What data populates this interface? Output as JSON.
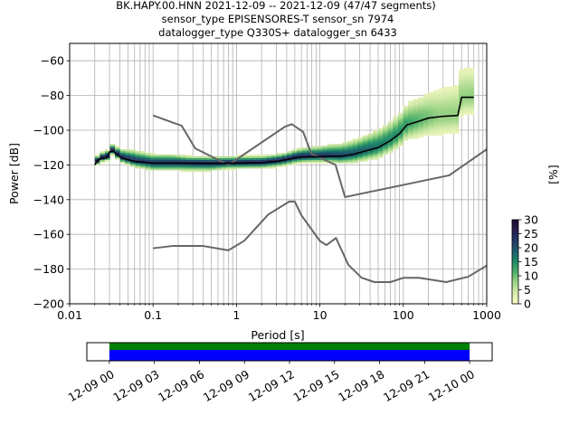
{
  "title_lines": [
    "BK.HAPY.00.HNN   2021-12-09 -- 2021-12-09  (47/47 segments)",
    "sensor_type EPISENSORES-T sensor_sn 7974",
    "datalogger_type Q330S+ datalogger_sn 6433"
  ],
  "chart_data": {
    "type": "heatmap",
    "xlabel": "Period [s]",
    "ylabel": "Power [dB]",
    "xscale": "log",
    "xlim": [
      0.01,
      1000
    ],
    "ylim": [
      -200,
      -50
    ],
    "xticks": [
      {
        "v": 0.01,
        "label": "0.01"
      },
      {
        "v": 0.1,
        "label": "0.1"
      },
      {
        "v": 1,
        "label": "1"
      },
      {
        "v": 10,
        "label": "10"
      },
      {
        "v": 100,
        "label": "100"
      },
      {
        "v": 1000,
        "label": "1000"
      }
    ],
    "yticks": [
      {
        "v": -60,
        "label": "−60"
      },
      {
        "v": -80,
        "label": "−80"
      },
      {
        "v": -100,
        "label": "−100"
      },
      {
        "v": -120,
        "label": "−120"
      },
      {
        "v": -140,
        "label": "−140"
      },
      {
        "v": -160,
        "label": "−160"
      },
      {
        "v": -180,
        "label": "−180"
      },
      {
        "v": -200,
        "label": "−200"
      }
    ],
    "grid": true,
    "noise_model_color": "#666666",
    "mode_line_color": "#000000",
    "new_high_noise_model": [
      [
        0.1,
        -91.5
      ],
      [
        0.22,
        -97.4
      ],
      [
        0.32,
        -110.5
      ],
      [
        0.8,
        -120
      ],
      [
        3.8,
        -98
      ],
      [
        4.6,
        -96.5
      ],
      [
        6.3,
        -101
      ],
      [
        7.9,
        -113.5
      ],
      [
        15.4,
        -120
      ],
      [
        20,
        -138.5
      ],
      [
        354.8,
        -126
      ],
      [
        1000,
        -111
      ]
    ],
    "new_low_noise_model": [
      [
        0.1,
        -168
      ],
      [
        0.17,
        -166.7
      ],
      [
        0.4,
        -166.7
      ],
      [
        0.8,
        -169.2
      ],
      [
        1.24,
        -163.7
      ],
      [
        2.4,
        -148.6
      ],
      [
        4.3,
        -141.1
      ],
      [
        5.0,
        -141.1
      ],
      [
        6.0,
        -149
      ],
      [
        10,
        -163.8
      ],
      [
        12,
        -166.2
      ],
      [
        15.6,
        -162.1
      ],
      [
        21.9,
        -177.5
      ],
      [
        31.6,
        -185
      ],
      [
        45,
        -187.5
      ],
      [
        70,
        -187.5
      ],
      [
        101,
        -185
      ],
      [
        154,
        -185
      ],
      [
        328,
        -187.5
      ],
      [
        600,
        -184.4
      ],
      [
        1000,
        -178
      ]
    ],
    "mode_psd": [
      [
        0.02,
        -120
      ],
      [
        0.022,
        -117
      ],
      [
        0.025,
        -116
      ],
      [
        0.028,
        -116
      ],
      [
        0.03,
        -112.5
      ],
      [
        0.033,
        -112
      ],
      [
        0.037,
        -114
      ],
      [
        0.042,
        -116
      ],
      [
        0.05,
        -117
      ],
      [
        0.06,
        -118
      ],
      [
        0.08,
        -118.5
      ],
      [
        0.1,
        -119
      ],
      [
        0.2,
        -119
      ],
      [
        0.5,
        -119.2
      ],
      [
        1,
        -119
      ],
      [
        2,
        -118.8
      ],
      [
        3,
        -118
      ],
      [
        4,
        -117
      ],
      [
        5,
        -116
      ],
      [
        6,
        -115.5
      ],
      [
        8,
        -115.3
      ],
      [
        10,
        -115.3
      ],
      [
        13,
        -115
      ],
      [
        18,
        -115
      ],
      [
        25,
        -114
      ],
      [
        35,
        -112
      ],
      [
        50,
        -110
      ],
      [
        70,
        -106
      ],
      [
        90,
        -102
      ],
      [
        110,
        -97
      ],
      [
        150,
        -95
      ],
      [
        200,
        -93
      ],
      [
        300,
        -92
      ],
      [
        450,
        -91.5
      ],
      [
        500,
        -81
      ],
      [
        700,
        -81
      ]
    ],
    "psd_density": {
      "period_lo": 0.02,
      "period_hi": 700,
      "period_bins": 75,
      "db_bin": 1,
      "spread_low_db": [
        2,
        2,
        3,
        4,
        4,
        4,
        4,
        3,
        3,
        3,
        3,
        3,
        3,
        4,
        5,
        6,
        7,
        9,
        10,
        10,
        9
      ],
      "spread_high_db": [
        2,
        3,
        5,
        4,
        4,
        3,
        3,
        3,
        3,
        3,
        3,
        4,
        5,
        6,
        7,
        9,
        10,
        12,
        14,
        16,
        15
      ]
    },
    "colorbar": {
      "label": "[%]",
      "min": 0,
      "max": 30,
      "ticks": [
        "0",
        "5",
        "10",
        "15",
        "20",
        "25",
        "30"
      ],
      "stops": [
        "#fdfcc4",
        "#d9edaf",
        "#9fd586",
        "#4fb06a",
        "#1f8a68",
        "#1d5e6b",
        "#223a66",
        "#2a1c4f",
        "#1a0a2e"
      ]
    },
    "timeline": {
      "ticks": [
        "12-09 00",
        "12-09 03",
        "12-09 06",
        "12-09 09",
        "12-09 12",
        "12-09 15",
        "12-09 18",
        "12-09 21",
        "12-10 00"
      ],
      "start_hour": -1.5,
      "end_hour": 25.5,
      "data_start_hour": 0,
      "data_end_hour": 24,
      "upper_band_color": "#008000",
      "lower_band_color": "#0000ff"
    }
  }
}
